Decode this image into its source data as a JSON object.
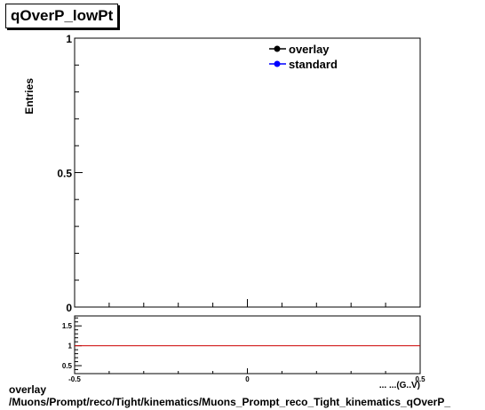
{
  "chart_data": [
    {
      "type": "line",
      "title": "qOverP_lowPt",
      "ylabel": "Entries",
      "xlabel": "",
      "xlim": [
        -0.5,
        0.5
      ],
      "ylim": [
        0,
        1
      ],
      "yticks": [
        {
          "value": 0,
          "label": "0"
        },
        {
          "value": 0.5,
          "label": "0.5"
        },
        {
          "value": 1,
          "label": "1"
        }
      ],
      "series": [
        {
          "name": "overlay",
          "color": "#000000",
          "marker": "circle",
          "values": []
        },
        {
          "name": "standard",
          "color": "#0000ff",
          "marker": "circle",
          "values": []
        }
      ],
      "legend": "top-right",
      "grid": false
    },
    {
      "type": "line",
      "xlim": [
        -0.5,
        0.5
      ],
      "ylim": [
        0.3,
        1.75
      ],
      "yticks": [
        {
          "value": 0.5,
          "label": "0.5"
        },
        {
          "value": 1,
          "label": "1"
        },
        {
          "value": 1.5,
          "label": "1.5"
        }
      ],
      "xticks": [
        {
          "value": -0.5,
          "label": "-0.5"
        },
        {
          "value": 0,
          "label": "0"
        },
        {
          "value": 0.5,
          "label": "0.5"
        }
      ],
      "xlabel_partial": "... ...(G..V)",
      "reference_line": {
        "value": 1,
        "color": "#cc0000"
      },
      "grid": false
    }
  ],
  "footer": {
    "line1": "overlay",
    "line2": "/Muons/Prompt/reco/Tight/kinematics/Muons_Prompt_reco_Tight_kinematics_qOverP_"
  }
}
